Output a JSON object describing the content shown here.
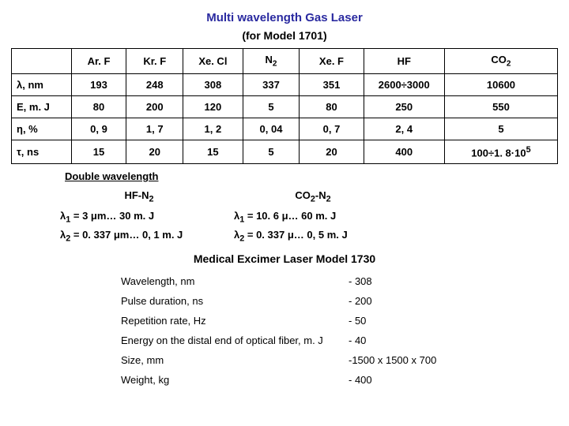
{
  "title1": "Multi wavelength Gas Laser",
  "subtitle": "(for Model 1701)",
  "table": {
    "headers": [
      "Ar. F",
      "Kr. F",
      "Xe. Cl",
      "N<sub>2</sub>",
      "Xe. F",
      "HF",
      "CO<sub>2</sub>"
    ],
    "col_widths": [
      "78px",
      "72px",
      "74px",
      "78px",
      "74px",
      "84px",
      "104px",
      "148px"
    ],
    "rows": [
      {
        "label": "&lambda;, nm",
        "cells": [
          "193",
          "248",
          "308",
          "337",
          "351",
          "2600&divide;3000",
          "10600"
        ]
      },
      {
        "label": "E, m. J",
        "cells": [
          "80",
          "200",
          "120",
          "5",
          "80",
          "250",
          "550"
        ]
      },
      {
        "label": "&eta;, %",
        "cells": [
          "0, 9",
          "1, 7",
          "1, 2",
          "0, 04",
          "0, 7",
          "2, 4",
          "5"
        ]
      },
      {
        "label": "&tau;, ns",
        "cells": [
          "15",
          "20",
          "15",
          "5",
          "20",
          "400",
          "100&divide;1. 8·10<sup>5</sup>"
        ]
      }
    ]
  },
  "dw": {
    "title": "Double wavelength",
    "col1_hdr": "HF-N<sub>2</sub>",
    "col2_hdr": "CO<sub>2</sub>-N<sub>2</sub>",
    "rows": [
      [
        "&lambda;<sub>1</sub> = 3 &mu;m… 30 m. J",
        "&lambda;<sub>1</sub> = 10. 6 &mu;… 60 m. J"
      ],
      [
        "&lambda;<sub>2</sub> = 0. 337 &mu;m… 0, 1 m. J",
        "&lambda;<sub>2</sub> = 0. 337 &mu;… 0, 5 m. J"
      ]
    ]
  },
  "med": {
    "title": "Medical Excimer Laser Model 1730",
    "rows": [
      [
        "Wavelength, nm",
        "- 308"
      ],
      [
        "Pulse duration, ns",
        "- 200"
      ],
      [
        "Repetition rate, Hz",
        "- 50"
      ],
      [
        "Energy on the distal end of optical fiber, m. J",
        "- 40"
      ],
      [
        "Size, mm",
        "-1500 x 1500 x 700"
      ],
      [
        "Weight, kg",
        "- 400"
      ]
    ]
  }
}
